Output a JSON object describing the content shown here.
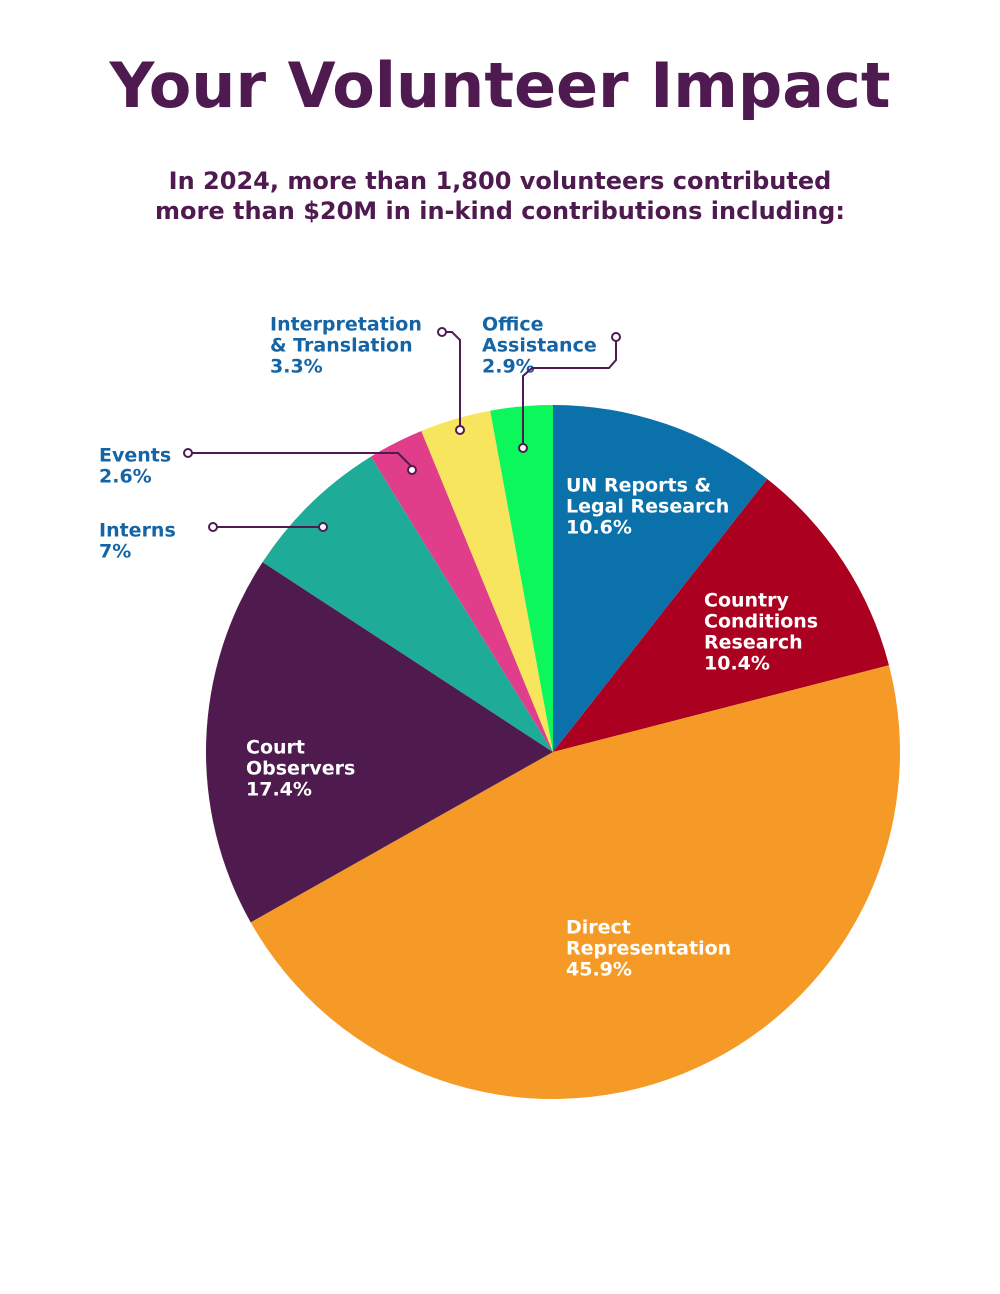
{
  "title": "Your Volunteer Impact",
  "subtitle_lines": [
    "In 2024, more than 1,800 volunteers contributed",
    "more than $20M in in-kind contributions including:"
  ],
  "colors": {
    "title": "#4e1a50",
    "subtitle": "#4e1a50",
    "outside_label": "#1565a6",
    "inside_label": "#ffffff",
    "leader": "#4e1a50"
  },
  "chart_data": {
    "type": "pie",
    "title": "",
    "start": "12 o'clock",
    "direction": "clockwise",
    "slices": [
      {
        "name": "UN Reports & Legal Research",
        "lines": [
          "UN Reports &",
          "Legal Research",
          "10.6%"
        ],
        "value": 10.6,
        "color": "#0a71ab",
        "label_placement": "inside"
      },
      {
        "name": "Country Conditions Research",
        "lines": [
          "Country",
          "Conditions",
          "Research",
          "10.4%"
        ],
        "value": 10.4,
        "color": "#ac0020",
        "label_placement": "inside"
      },
      {
        "name": "Direct Representation",
        "lines": [
          "Direct",
          "Representation",
          "45.9%"
        ],
        "value": 45.9,
        "color": "#f59a26",
        "label_placement": "inside"
      },
      {
        "name": "Court Observers",
        "lines": [
          "Court",
          "Observers",
          "17.4%"
        ],
        "value": 17.4,
        "color": "#4f1b4f",
        "label_placement": "inside"
      },
      {
        "name": "Interns",
        "lines": [
          "Interns",
          "7%"
        ],
        "value": 7,
        "color": "#1eab97",
        "label_placement": "outside"
      },
      {
        "name": "Events",
        "lines": [
          "Events",
          "2.6%"
        ],
        "value": 2.6,
        "color": "#e03e8a",
        "label_placement": "outside"
      },
      {
        "name": "Interpretation & Translation",
        "lines": [
          "Interpretation",
          "& Translation",
          "3.3%"
        ],
        "value": 3.3,
        "color": "#f7e55e",
        "label_placement": "outside"
      },
      {
        "name": "Office Assistance",
        "lines": [
          "Office",
          "Assistance",
          "2.9%"
        ],
        "value": 2.9,
        "color": "#0cf75c",
        "label_placement": "outside"
      }
    ]
  }
}
